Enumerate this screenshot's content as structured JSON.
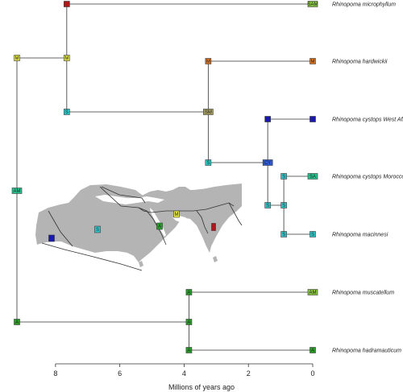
{
  "axis": {
    "title": "Millions of years ago",
    "ticks": [
      8,
      6,
      4,
      2,
      0
    ],
    "range": [
      9.35,
      0
    ]
  },
  "taxa": [
    {
      "name": "Rhinopoma microphyllum",
      "label": "SAM"
    },
    {
      "name": "Rhinopoma hardwickii",
      "label": "M"
    },
    {
      "name": "Rhinopoma cystops West Africa",
      "label": ""
    },
    {
      "name": "Rhinopoma cystops Morocco",
      "label": "SA"
    },
    {
      "name": "Rhinopoma macinnesi",
      "label": "S"
    },
    {
      "name": "Rhinopoma muscatellum",
      "label": "AM"
    },
    {
      "name": "Rhinopoma hadramauticum",
      "label": "A"
    }
  ],
  "internal_nodes": [
    {
      "id": "root",
      "label": "AM",
      "age": 9.2
    },
    {
      "id": "n_upper",
      "label": "M",
      "age": 9.2
    },
    {
      "id": "n_lower",
      "label": "A",
      "age": 9.2
    },
    {
      "id": "n_big",
      "label": "M",
      "age": 7.65
    },
    {
      "id": "n_big_top",
      "label": "",
      "age": 7.65
    },
    {
      "id": "n_big_bottom",
      "label": "S",
      "age": 7.65
    },
    {
      "id": "n_sm",
      "label": "SM",
      "age": 3.25
    },
    {
      "id": "n_sm_top",
      "label": "M",
      "age": 3.25
    },
    {
      "id": "n_sm_bottom",
      "label": "S",
      "age": 3.25
    },
    {
      "id": "n_cy",
      "label": "CY",
      "age": 1.4
    },
    {
      "id": "n_cy_top",
      "label": "",
      "age": 1.4
    },
    {
      "id": "n_cy_bottom",
      "label": "S",
      "age": 1.4
    },
    {
      "id": "n_sa",
      "label": "S",
      "age": 0.9
    },
    {
      "id": "n_sa_top",
      "label": "S",
      "age": 0.9
    },
    {
      "id": "n_sa_bottom",
      "label": "S",
      "age": 0.9
    },
    {
      "id": "n_am",
      "label": "A",
      "age": 3.85
    },
    {
      "id": "n_am_top",
      "label": "A",
      "age": 3.85
    },
    {
      "id": "n_am_bottom",
      "label": "A",
      "age": 3.85
    }
  ],
  "map_regions": [
    {
      "label": "",
      "color": "#1a1aaa"
    },
    {
      "label": "S",
      "color": "#33c8c8"
    },
    {
      "label": "A",
      "color": "#2aa02a"
    },
    {
      "label": "M",
      "color": "#e8e84a"
    },
    {
      "label": "",
      "color": "#b01818"
    }
  ],
  "colors": {
    "red": "#b01818",
    "yellow": "#e8e84a",
    "cyan": "#33c8c8",
    "khaki": "#a8a060",
    "orange": "#e07a28",
    "navy": "#1a1aaa",
    "blue": "#2a5ad8",
    "teal_green": "#28c490",
    "green": "#2aa02a",
    "lime": "#88c840",
    "map_land": "#b4b4b4"
  }
}
